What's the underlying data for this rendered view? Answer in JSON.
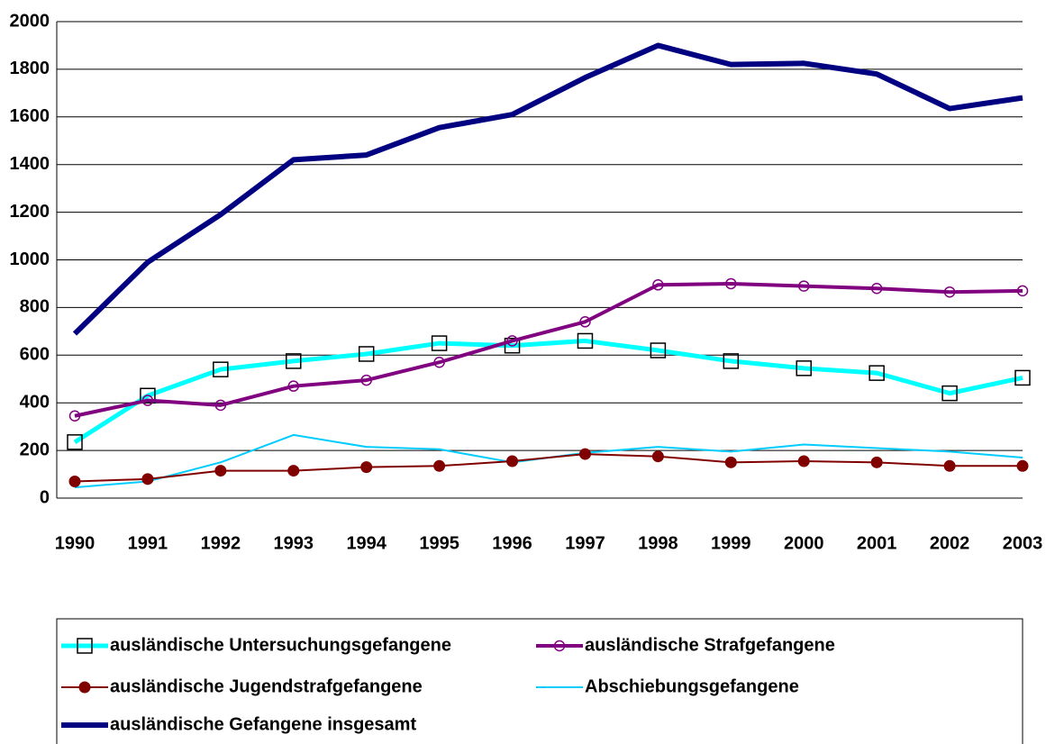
{
  "chart_data": {
    "type": "line",
    "categories": [
      "1990",
      "1991",
      "1992",
      "1993",
      "1994",
      "1995",
      "1996",
      "1997",
      "1998",
      "1999",
      "2000",
      "2001",
      "2002",
      "2003"
    ],
    "series": [
      {
        "name": "ausländische Untersuchungsgefangene",
        "color": "#00ffff",
        "marker": "square",
        "values": [
          235,
          430,
          540,
          575,
          605,
          650,
          640,
          660,
          620,
          575,
          545,
          525,
          440,
          505
        ]
      },
      {
        "name": "ausländische Strafgefangene",
        "color": "#800080",
        "marker": "circle-open",
        "values": [
          345,
          410,
          390,
          470,
          495,
          570,
          660,
          740,
          895,
          900,
          890,
          880,
          865,
          870
        ]
      },
      {
        "name": "ausländische Jugendstrafgefangene",
        "color": "#800000",
        "marker": "circle",
        "values": [
          70,
          80,
          115,
          115,
          130,
          135,
          155,
          185,
          175,
          150,
          155,
          150,
          135,
          135
        ]
      },
      {
        "name": "Abschiebungsgefangene",
        "color": "#00ccff",
        "marker": "none",
        "values": [
          45,
          70,
          150,
          265,
          215,
          205,
          150,
          190,
          215,
          195,
          225,
          210,
          195,
          170
        ]
      },
      {
        "name": "ausländische Gefangene insgesamt",
        "color": "#000080",
        "marker": "none",
        "values": [
          690,
          990,
          1190,
          1420,
          1440,
          1555,
          1610,
          1765,
          1900,
          1820,
          1825,
          1780,
          1635,
          1680
        ]
      }
    ],
    "ylim": [
      0,
      2000
    ],
    "yticks": [
      0,
      200,
      400,
      600,
      800,
      1000,
      1200,
      1400,
      1600,
      1800,
      2000
    ],
    "grid": true
  }
}
